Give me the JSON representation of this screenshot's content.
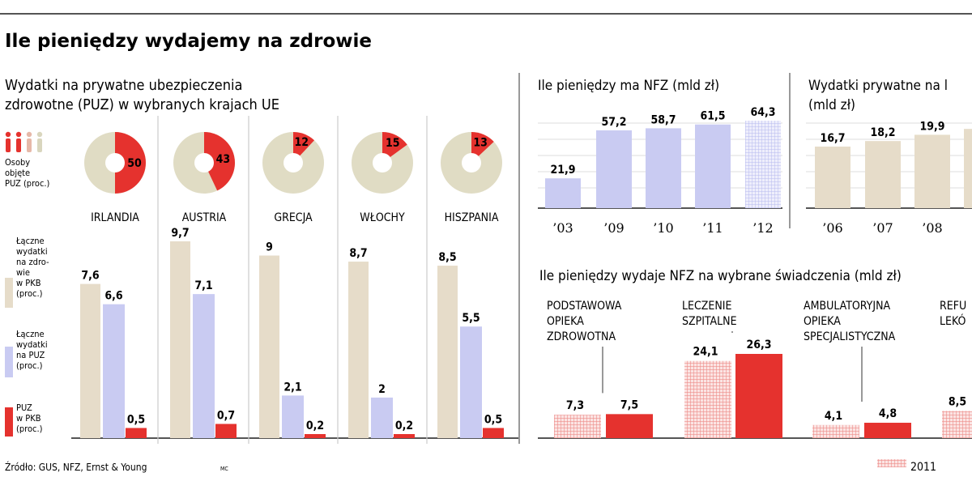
{
  "title": "Ile pieniędzy wydajemy na zdrowie",
  "colors": {
    "beige": "#e6dcc9",
    "lavender": "#c9cbf2",
    "red": "#e5322e",
    "donut_bg": "#e0dcc4",
    "lavender_pattern": "#c7c8f0",
    "pink_pattern": "#f1a3a0"
  },
  "left": {
    "subtitle_line1": "Wydatki na prywatne ubezpieczenia",
    "subtitle_line2": "zdrowotne (PUZ) w wybranych krajach UE",
    "legend_people_lines": [
      "Osoby",
      "objęte",
      "PUZ (proc.)"
    ],
    "legend_beige_lines": [
      "Łączne",
      "wydatki",
      "na zdro-",
      "wie",
      "w PKB",
      "(proc.)"
    ],
    "legend_lavender_lines": [
      "Łączne",
      "wydatki",
      "na PUZ",
      "(proc.)"
    ],
    "legend_red_lines": [
      "PUZ",
      "w PKB",
      "(proc.)"
    ]
  },
  "source": "Źródło: GUS, NFZ, Ernst & Young",
  "author": "MC",
  "nfz_total_title": "Ile pieniędzy ma NFZ (mld zł)",
  "private_spend_title_lines": [
    "Wydatki prywatne na l",
    "(mld zł)"
  ],
  "services_title": "Ile pieniędzy wydaje NFZ na wybrane świadczenia (mld zł)",
  "services_legend_label": "2011",
  "chart_data": [
    {
      "id": "coverage",
      "type": "pie",
      "title": "Osoby objęte PUZ (proc.)",
      "categories": [
        "IRLANDIA",
        "AUSTRIA",
        "GRECJA",
        "WŁOCHY",
        "HISZPANIA"
      ],
      "values": [
        50,
        43,
        12,
        15,
        13
      ],
      "value_labels": [
        "50",
        "43",
        "12",
        "15",
        "13"
      ]
    },
    {
      "id": "puz",
      "type": "bar",
      "categories": [
        "IRLANDIA",
        "AUSTRIA",
        "GRECJA",
        "WŁOCHY",
        "HISZPANIA"
      ],
      "series": [
        {
          "name": "Łączne wydatki na zdrowie w PKB (proc.)",
          "values": [
            7.6,
            9.7,
            9,
            8.7,
            8.5
          ],
          "labels": [
            "7,6",
            "9,7",
            "9",
            "8,7",
            "8,5"
          ],
          "color": "#e6dcc9"
        },
        {
          "name": "Łączne wydatki na PUZ (proc.)",
          "values": [
            6.6,
            7.1,
            2.1,
            2,
            5.5
          ],
          "labels": [
            "6,6",
            "7,1",
            "2,1",
            "2",
            "5,5"
          ],
          "color": "#c9cbf2"
        },
        {
          "name": "PUZ w PKB (proc.)",
          "values": [
            0.5,
            0.7,
            0.2,
            0.2,
            0.5
          ],
          "labels": [
            "0,5",
            "0,7",
            "0,2",
            "0,2",
            "0,5"
          ],
          "color": "#e5322e"
        }
      ],
      "ylim": [
        0,
        10
      ]
    },
    {
      "id": "nfz",
      "type": "bar",
      "title": "Ile pieniędzy ma NFZ (mld zł)",
      "categories": [
        "’03",
        "’09",
        "’10",
        "’11",
        "’12"
      ],
      "values": [
        21.9,
        57.2,
        58.7,
        61.5,
        64.3
      ],
      "labels": [
        "21,9",
        "57,2",
        "58,7",
        "61,5",
        "64,3"
      ],
      "ylim": [
        0,
        70
      ]
    },
    {
      "id": "private",
      "type": "bar",
      "categories": [
        "’06",
        "’07",
        "’08"
      ],
      "values": [
        16.7,
        18.2,
        19.9
      ],
      "labels": [
        "16,7",
        "18,2",
        "19,9"
      ],
      "ylim": [
        0,
        25
      ]
    },
    {
      "id": "services",
      "type": "bar",
      "title": "Ile pieniędzy wydaje NFZ na wybrane świadczenia (mld zł)",
      "groups": [
        {
          "label_lines": [
            "PODSTAWOWA",
            "OPIEKA",
            "ZDROWOTNA"
          ],
          "values": [
            7.3,
            7.5
          ],
          "labels": [
            "7,3",
            "7,5"
          ]
        },
        {
          "label_lines": [
            "LECZENIE",
            "SZPITALNE"
          ],
          "values": [
            24.1,
            26.3
          ],
          "labels": [
            "24,1",
            "26,3"
          ]
        },
        {
          "label_lines": [
            "AMBULATORYJNA",
            "OPIEKA",
            "SPECJALISTYCZNA"
          ],
          "values": [
            4.1,
            4.8
          ],
          "labels": [
            "4,1",
            "4,8"
          ]
        },
        {
          "label_lines": [
            "REFU",
            "LEKÓ"
          ],
          "values": [
            8.5
          ],
          "labels": [
            "8,5"
          ]
        }
      ],
      "series": [
        {
          "name": "2011"
        },
        {
          "name": ""
        }
      ],
      "ylim": [
        0,
        30
      ]
    }
  ]
}
